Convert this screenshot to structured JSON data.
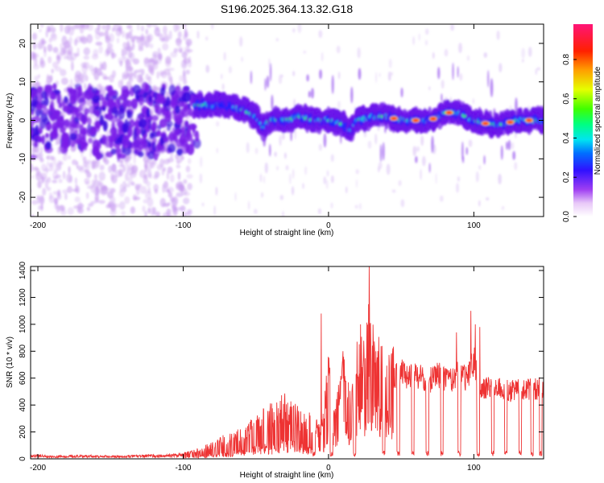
{
  "title": "S196.2025.364.13.32.G18",
  "chart_data": [
    {
      "type": "heatmap",
      "xlabel": "Height of straight line (km)",
      "ylabel": "Frequency (Hz)",
      "xlim": [
        -205,
        148
      ],
      "ylim": [
        -25,
        25
      ],
      "xticks": [
        -200,
        -100,
        0,
        100
      ],
      "yticks": [
        20,
        10,
        0,
        -10,
        -20
      ],
      "colorbar": {
        "label": "Normalized spectral amplitude",
        "range": [
          0,
          0.98
        ],
        "ticks": [
          0.0,
          0.2,
          0.4,
          0.6,
          0.8
        ]
      },
      "ridge_x": [
        -80,
        -70,
        -60,
        -50,
        -45,
        -40,
        -30,
        -20,
        -10,
        0,
        10,
        15,
        20,
        30,
        40,
        50,
        60,
        70,
        80,
        90,
        100,
        110,
        120,
        130,
        140,
        148
      ],
      "ridge_y": [
        4,
        4,
        3,
        1,
        -2,
        0,
        0,
        1,
        0,
        0,
        -1,
        -3,
        0,
        1,
        1,
        0,
        0,
        0,
        2,
        2,
        0,
        -1,
        -1,
        0,
        0,
        0
      ],
      "peak_x": [
        45,
        60,
        72,
        83,
        108,
        125,
        138
      ]
    },
    {
      "type": "line",
      "xlabel": "Height of straight line (km)",
      "ylabel": "SNR (10 * v/v)",
      "xlim": [
        -205,
        148
      ],
      "ylim": [
        0,
        1430
      ],
      "xticks": [
        -200,
        -100,
        0,
        100
      ],
      "yticks": [
        0,
        200,
        400,
        600,
        800,
        1000,
        1200,
        1400
      ],
      "series": [
        {
          "color": "#ee3333",
          "x": [
            -205,
            -190,
            -170,
            -150,
            -130,
            -110,
            -100,
            -90,
            -80,
            -70,
            -60,
            -50,
            -40,
            -30,
            -20,
            -10,
            -5,
            0,
            5,
            10,
            15,
            20,
            25,
            28,
            30,
            35,
            40,
            45,
            50,
            55,
            60,
            65,
            70,
            75,
            80,
            85,
            90,
            95,
            100,
            105,
            110,
            115,
            120,
            125,
            130,
            135,
            140,
            148
          ],
          "values": [
            30,
            20,
            25,
            20,
            25,
            30,
            35,
            60,
            100,
            150,
            180,
            250,
            320,
            380,
            300,
            250,
            200,
            680,
            350,
            650,
            450,
            800,
            750,
            1400,
            900,
            800,
            750,
            700,
            750,
            700,
            720,
            700,
            680,
            720,
            700,
            680,
            750,
            680,
            850,
            600,
            620,
            600,
            600,
            580,
            600,
            600,
            600,
            620
          ],
          "spikes": [
            {
              "x": -5,
              "y": 1080
            },
            {
              "x": 10,
              "y": 800
            },
            {
              "x": 22,
              "y": 1000
            },
            {
              "x": 28,
              "y": 1430
            },
            {
              "x": 88,
              "y": 940
            },
            {
              "x": 98,
              "y": 1100
            },
            {
              "x": 101,
              "y": 1000
            },
            {
              "x": 104,
              "y": 980
            }
          ],
          "dips": [
            -10,
            2,
            18,
            38,
            48,
            58,
            68,
            78,
            90,
            103,
            113,
            122,
            132,
            140,
            146
          ]
        }
      ]
    }
  ]
}
